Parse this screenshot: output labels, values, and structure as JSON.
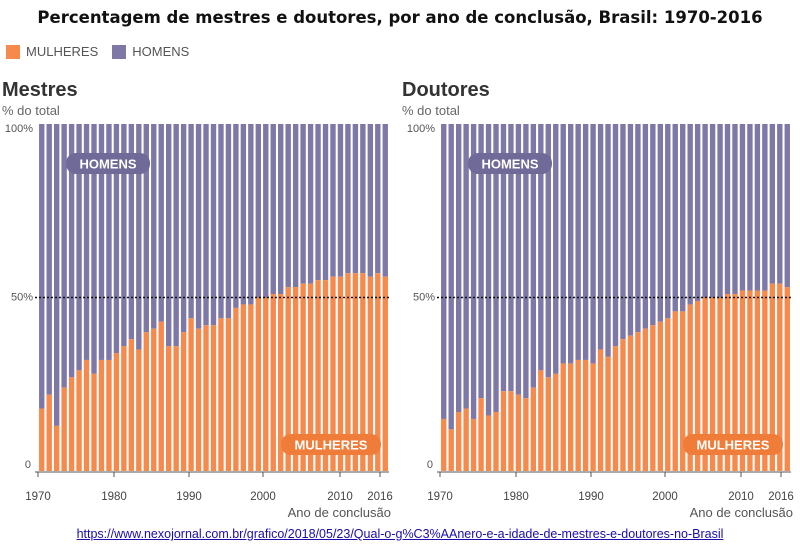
{
  "title": "Percentagem de mestres e doutores, por ano de conclusão, Brasil: 1970-2016",
  "legend": [
    {
      "label": "MULHERES",
      "color": "#f58a4c"
    },
    {
      "label": "HOMENS",
      "color": "#7e78a6"
    }
  ],
  "colors": {
    "mulheres": "#f58a4c",
    "homens": "#7e78a6",
    "label_bg": "#6f6a98"
  },
  "source_url": "https://www.nexojornal.com.br/grafico/2018/05/23/Qual-o-g%C3%AAnero-e-a-idade-de-mestres-e-doutores-no-Brasil",
  "chart_data": [
    {
      "type": "bar",
      "stacked": true,
      "title": "Mestres",
      "ylabel": "% do total",
      "xlabel": "Ano de conclusão",
      "ylim": [
        0,
        100
      ],
      "y_ticks": [
        "0",
        "50%",
        "100%"
      ],
      "x_ticks": [
        "1970",
        "1980",
        "1990",
        "2000",
        "2010",
        "2016"
      ],
      "reference_line": 50,
      "label_top": "HOMENS",
      "label_bottom": "MULHERES",
      "categories": [
        1970,
        1971,
        1972,
        1973,
        1974,
        1975,
        1976,
        1977,
        1978,
        1979,
        1980,
        1981,
        1982,
        1983,
        1984,
        1985,
        1986,
        1987,
        1988,
        1989,
        1990,
        1991,
        1992,
        1993,
        1994,
        1995,
        1996,
        1997,
        1998,
        1999,
        2000,
        2001,
        2002,
        2003,
        2004,
        2005,
        2006,
        2007,
        2008,
        2009,
        2010,
        2011,
        2012,
        2013,
        2014,
        2015,
        2016
      ],
      "series": [
        {
          "name": "MULHERES",
          "values": [
            18,
            22,
            13,
            24,
            27,
            29,
            32,
            28,
            32,
            32,
            34,
            36,
            38,
            35,
            40,
            41,
            43,
            36,
            36,
            40,
            44,
            41,
            42,
            42,
            44,
            44,
            47,
            48,
            48,
            50,
            50,
            51,
            51,
            53,
            53,
            54,
            54,
            55,
            55,
            56,
            56,
            57,
            57,
            57,
            56,
            57,
            56
          ]
        },
        {
          "name": "HOMENS",
          "values": [
            82,
            78,
            87,
            76,
            73,
            71,
            68,
            72,
            68,
            68,
            66,
            64,
            62,
            65,
            60,
            59,
            57,
            64,
            64,
            60,
            56,
            59,
            58,
            58,
            56,
            56,
            53,
            52,
            52,
            50,
            50,
            49,
            49,
            47,
            47,
            46,
            46,
            45,
            45,
            44,
            44,
            43,
            43,
            43,
            44,
            43,
            44
          ]
        }
      ]
    },
    {
      "type": "bar",
      "stacked": true,
      "title": "Doutores",
      "ylabel": "% do total",
      "xlabel": "Ano de conclusão",
      "ylim": [
        0,
        100
      ],
      "y_ticks": [
        "0",
        "50%",
        "100%"
      ],
      "x_ticks": [
        "1970",
        "1980",
        "1990",
        "2000",
        "2010",
        "2016"
      ],
      "reference_line": 50,
      "label_top": "HOMENS",
      "label_bottom": "MULHERES",
      "categories": [
        1970,
        1971,
        1972,
        1973,
        1974,
        1975,
        1976,
        1977,
        1978,
        1979,
        1980,
        1981,
        1982,
        1983,
        1984,
        1985,
        1986,
        1987,
        1988,
        1989,
        1990,
        1991,
        1992,
        1993,
        1994,
        1995,
        1996,
        1997,
        1998,
        1999,
        2000,
        2001,
        2002,
        2003,
        2004,
        2005,
        2006,
        2007,
        2008,
        2009,
        2010,
        2011,
        2012,
        2013,
        2014,
        2015,
        2016
      ],
      "series": [
        {
          "name": "MULHERES",
          "values": [
            15,
            12,
            17,
            18,
            15,
            21,
            16,
            17,
            23,
            23,
            22,
            21,
            24,
            29,
            27,
            28,
            31,
            31,
            32,
            32,
            31,
            35,
            33,
            36,
            38,
            39,
            40,
            41,
            42,
            43,
            44,
            46,
            46,
            48,
            49,
            50,
            50,
            50,
            51,
            51,
            52,
            52,
            52,
            52,
            54,
            54,
            53
          ]
        },
        {
          "name": "HOMENS",
          "values": [
            85,
            88,
            83,
            82,
            85,
            79,
            84,
            83,
            77,
            77,
            78,
            79,
            76,
            71,
            73,
            72,
            69,
            69,
            68,
            68,
            69,
            65,
            67,
            64,
            62,
            61,
            60,
            59,
            58,
            57,
            56,
            54,
            54,
            52,
            51,
            50,
            50,
            50,
            49,
            49,
            48,
            48,
            48,
            48,
            46,
            46,
            47
          ]
        }
      ]
    }
  ]
}
